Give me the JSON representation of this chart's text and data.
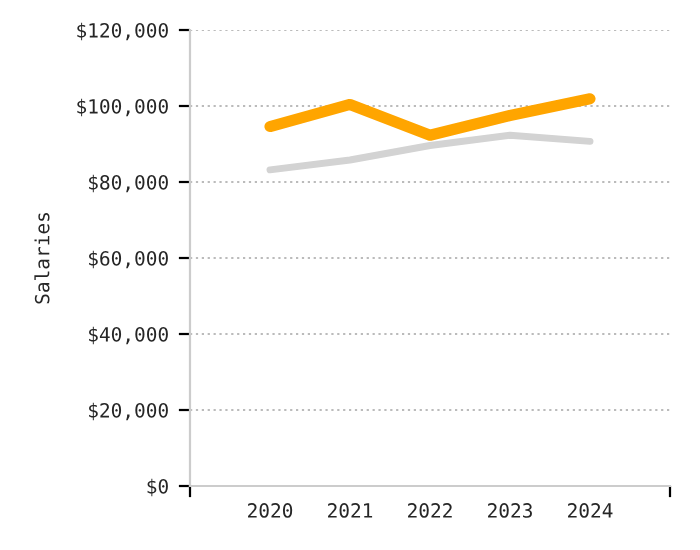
{
  "chart_data": {
    "type": "line",
    "ylabel": "Salaries",
    "categories": [
      "2020",
      "2021",
      "2022",
      "2023",
      "2024"
    ],
    "series": [
      {
        "color": "#ffa500",
        "values": [
          94600,
          100400,
          92300,
          97500,
          101900
        ]
      },
      {
        "color": "#d3d3d3",
        "values": [
          83200,
          85800,
          89600,
          92300,
          90700
        ]
      }
    ],
    "ylim": [
      0,
      120000
    ],
    "yticks": [
      {
        "value": 0,
        "label": "$0"
      },
      {
        "value": 20000,
        "label": "$20,000"
      },
      {
        "value": 40000,
        "label": "$40,000"
      },
      {
        "value": 60000,
        "label": "$60,000"
      },
      {
        "value": 80000,
        "label": "$80,000"
      },
      {
        "value": 100000,
        "label": "$100,000"
      },
      {
        "value": 120000,
        "label": "$120,000"
      }
    ],
    "grid": "y",
    "marker": "none",
    "line_style": "solid"
  }
}
